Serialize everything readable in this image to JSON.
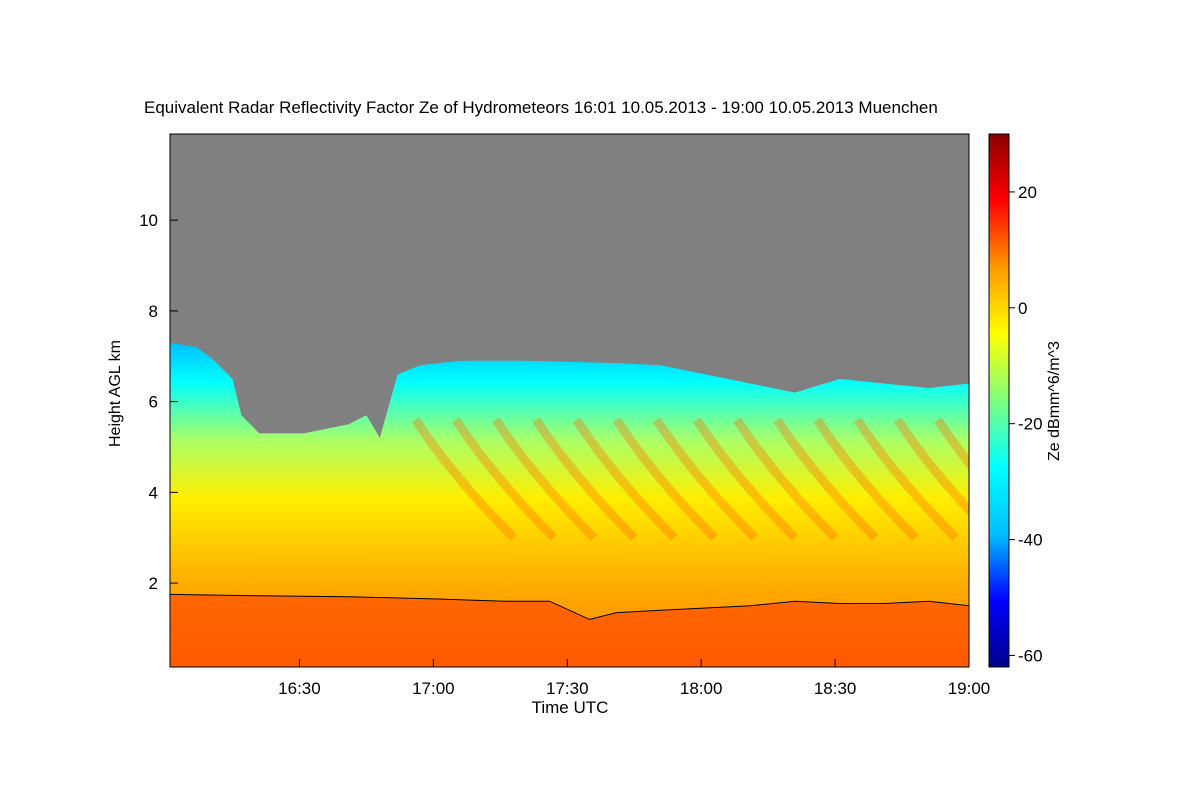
{
  "chart_data": {
    "type": "heatmap",
    "title": "Equivalent Radar Reflectivity Factor Ze of Hydrometeors   16:01 10.05.2013 - 19:00 10.05.2013 Muenchen",
    "xlabel": "Time UTC",
    "ylabel": "Height AGL km",
    "x_ticks": [
      "16:30",
      "17:00",
      "17:30",
      "18:00",
      "18:30",
      "19:00"
    ],
    "x_tick_minutes": [
      29,
      59,
      89,
      119,
      149,
      179
    ],
    "x_range_minutes": [
      0,
      179
    ],
    "y_ticks": [
      2,
      4,
      6,
      8,
      10
    ],
    "y_range_km": [
      0.15,
      11.9
    ],
    "colorbar": {
      "label": "Ze dBmm^6/m^3",
      "ticks": [
        20,
        0,
        -20,
        -40,
        -60
      ],
      "range": [
        -62,
        30
      ],
      "colormap": [
        "#00008b",
        "#0000ff",
        "#00bfff",
        "#00ffff",
        "#7fff7f",
        "#ffff00",
        "#ff9900",
        "#ff0000",
        "#8b0000"
      ]
    },
    "background_color": "#808080",
    "echo_top_km": [
      [
        0,
        7.3
      ],
      [
        6,
        7.2
      ],
      [
        10,
        6.9
      ],
      [
        14,
        6.5
      ],
      [
        16,
        5.7
      ],
      [
        20,
        5.3
      ],
      [
        30,
        5.3
      ],
      [
        40,
        5.5
      ],
      [
        44,
        5.7
      ],
      [
        47,
        5.2
      ],
      [
        49,
        5.9
      ],
      [
        51,
        6.6
      ],
      [
        56,
        6.8
      ],
      [
        65,
        6.9
      ],
      [
        80,
        6.9
      ],
      [
        100,
        6.85
      ],
      [
        110,
        6.8
      ],
      [
        120,
        6.6
      ],
      [
        130,
        6.4
      ],
      [
        140,
        6.2
      ],
      [
        150,
        6.5
      ],
      [
        160,
        6.4
      ],
      [
        170,
        6.3
      ],
      [
        179,
        6.4
      ]
    ],
    "rain_top_km": [
      [
        0,
        1.75
      ],
      [
        20,
        1.72
      ],
      [
        40,
        1.7
      ],
      [
        60,
        1.65
      ],
      [
        75,
        1.6
      ],
      [
        85,
        1.6
      ],
      [
        94,
        1.2
      ],
      [
        100,
        1.35
      ],
      [
        110,
        1.4
      ],
      [
        120,
        1.45
      ],
      [
        130,
        1.5
      ],
      [
        140,
        1.6
      ],
      [
        150,
        1.55
      ],
      [
        160,
        1.55
      ],
      [
        170,
        1.6
      ],
      [
        179,
        1.5
      ]
    ]
  }
}
